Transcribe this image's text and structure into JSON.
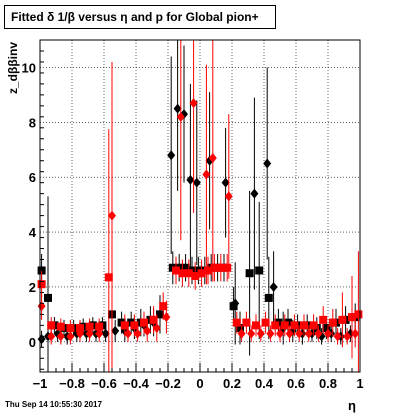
{
  "title": "Fitted δ 1/β versus η and p for Global pion+",
  "footer": "Thu Sep 14 10:55:30 2017",
  "chart_data": {
    "type": "scatter",
    "title": "Fitted δ 1/β versus η and p for Global pion+",
    "xlabel": "η",
    "ylabel": "z_dββinv",
    "xlim": [
      -1,
      1
    ],
    "ylim": [
      -1.1,
      11
    ],
    "x_ticks": [
      -1,
      -0.8,
      -0.6,
      -0.4,
      -0.2,
      0,
      0.2,
      0.4,
      0.6,
      0.8,
      1
    ],
    "x_tick_labels": [
      "−1",
      "−0.8",
      "−0.6",
      "−0.4",
      "−0.2",
      "0",
      "0.2",
      "0.4",
      "0.6",
      "0.8",
      "1"
    ],
    "y_ticks": [
      0,
      2,
      4,
      6,
      8,
      10
    ],
    "y_tick_labels": [
      "0",
      "2",
      "4",
      "6",
      "8",
      "10"
    ],
    "grid": true,
    "legend": "none",
    "colors": {
      "black": "#000000",
      "red": "#ff0000"
    },
    "series": [
      {
        "color": "black",
        "marker": "square",
        "points": [
          {
            "x": -0.99,
            "y": 2.6,
            "err": 0.6
          },
          {
            "x": -0.95,
            "y": 1.6,
            "err": 3.7
          },
          {
            "x": -0.91,
            "y": 0.6,
            "err": 0.3
          },
          {
            "x": -0.85,
            "y": 0.5,
            "err": 0.3
          },
          {
            "x": -0.79,
            "y": 0.5,
            "err": 0.3
          },
          {
            "x": -0.73,
            "y": 0.55,
            "err": 0.3
          },
          {
            "x": -0.67,
            "y": 0.6,
            "err": 0.3
          },
          {
            "x": -0.61,
            "y": 0.6,
            "err": 0.3
          },
          {
            "x": -0.55,
            "y": 1.0,
            "err": 0.6
          },
          {
            "x": -0.49,
            "y": 0.7,
            "err": 0.4
          },
          {
            "x": -0.43,
            "y": 0.7,
            "err": 0.4
          },
          {
            "x": -0.37,
            "y": 0.7,
            "err": 0.5
          },
          {
            "x": -0.31,
            "y": 0.8,
            "err": 0.5
          },
          {
            "x": -0.25,
            "y": 1.0,
            "err": 0.7
          },
          {
            "x": -0.17,
            "y": 2.7,
            "err": 0.6
          },
          {
            "x": -0.13,
            "y": 2.7,
            "err": 0.5
          },
          {
            "x": -0.09,
            "y": 2.7,
            "err": 0.5
          },
          {
            "x": -0.05,
            "y": 2.6,
            "err": 0.5
          },
          {
            "x": -0.01,
            "y": 2.6,
            "err": 0.5
          },
          {
            "x": 0.03,
            "y": 2.6,
            "err": 0.5
          },
          {
            "x": 0.07,
            "y": 2.7,
            "err": 0.5
          },
          {
            "x": 0.11,
            "y": 2.7,
            "err": 0.5
          },
          {
            "x": 0.15,
            "y": 2.7,
            "err": 0.5
          },
          {
            "x": 0.21,
            "y": 1.3,
            "err": 0.7
          },
          {
            "x": 0.25,
            "y": 0.5,
            "err": 0.6
          },
          {
            "x": 0.31,
            "y": 2.5,
            "err": 3.0
          },
          {
            "x": 0.37,
            "y": 2.6,
            "err": 2.5
          },
          {
            "x": 0.43,
            "y": 1.6,
            "err": 1.5
          },
          {
            "x": 0.49,
            "y": 0.7,
            "err": 0.5
          },
          {
            "x": 0.55,
            "y": 0.7,
            "err": 0.5
          },
          {
            "x": 0.61,
            "y": 0.6,
            "err": 0.4
          },
          {
            "x": 0.67,
            "y": 0.6,
            "err": 0.4
          },
          {
            "x": 0.73,
            "y": 0.5,
            "err": 0.4
          },
          {
            "x": 0.79,
            "y": 0.5,
            "err": 0.4
          },
          {
            "x": 0.85,
            "y": 0.7,
            "err": 0.5
          },
          {
            "x": 0.91,
            "y": 0.8,
            "err": 0.5
          },
          {
            "x": 0.97,
            "y": 0.9,
            "err": 0.5
          }
        ]
      },
      {
        "color": "black",
        "marker": "diamond",
        "points": [
          {
            "x": -0.99,
            "y": 0.1,
            "err": 0.3
          },
          {
            "x": -0.95,
            "y": 0.2,
            "err": 0.3
          },
          {
            "x": -0.89,
            "y": 0.3,
            "err": 0.3
          },
          {
            "x": -0.83,
            "y": 0.2,
            "err": 0.3
          },
          {
            "x": -0.77,
            "y": 0.3,
            "err": 0.3
          },
          {
            "x": -0.71,
            "y": 0.3,
            "err": 0.3
          },
          {
            "x": -0.65,
            "y": 0.3,
            "err": 0.3
          },
          {
            "x": -0.59,
            "y": 0.3,
            "err": 0.3
          },
          {
            "x": -0.53,
            "y": 0.4,
            "err": 0.4
          },
          {
            "x": -0.47,
            "y": 0.4,
            "err": 0.4
          },
          {
            "x": -0.41,
            "y": 0.5,
            "err": 0.4
          },
          {
            "x": -0.35,
            "y": 0.6,
            "err": 0.4
          },
          {
            "x": -0.29,
            "y": 0.7,
            "err": 0.5
          },
          {
            "x": -0.18,
            "y": 6.8,
            "err": 3.6
          },
          {
            "x": -0.14,
            "y": 8.5,
            "err": 3.0
          },
          {
            "x": -0.1,
            "y": 8.3,
            "err": 2.5
          },
          {
            "x": -0.06,
            "y": 5.9,
            "err": 3.5
          },
          {
            "x": -0.02,
            "y": 5.8,
            "err": 3.0
          },
          {
            "x": 0.06,
            "y": 6.6,
            "err": 2.5
          },
          {
            "x": 0.16,
            "y": 5.8,
            "err": 2.0
          },
          {
            "x": 0.22,
            "y": 1.4,
            "err": 1.5
          },
          {
            "x": 0.34,
            "y": 5.4,
            "err": 3.5
          },
          {
            "x": 0.42,
            "y": 6.5,
            "err": 3.5
          },
          {
            "x": 0.46,
            "y": 2.0,
            "err": 1.3
          },
          {
            "x": 0.52,
            "y": 0.5,
            "err": 0.6
          },
          {
            "x": 0.58,
            "y": 0.4,
            "err": 0.4
          },
          {
            "x": 0.64,
            "y": 0.3,
            "err": 0.4
          },
          {
            "x": 0.7,
            "y": 0.3,
            "err": 0.3
          },
          {
            "x": 0.76,
            "y": 0.2,
            "err": 0.3
          },
          {
            "x": 0.82,
            "y": 0.3,
            "err": 0.3
          },
          {
            "x": 0.88,
            "y": 0.2,
            "err": 0.3
          },
          {
            "x": 0.94,
            "y": 0.3,
            "err": 0.3
          }
        ]
      },
      {
        "color": "red",
        "marker": "square",
        "points": [
          {
            "x": -0.99,
            "y": 2.1,
            "err": 0.5
          },
          {
            "x": -0.93,
            "y": 0.6,
            "err": 0.3
          },
          {
            "x": -0.87,
            "y": 0.55,
            "err": 0.3
          },
          {
            "x": -0.81,
            "y": 0.5,
            "err": 0.3
          },
          {
            "x": -0.75,
            "y": 0.5,
            "err": 0.3
          },
          {
            "x": -0.69,
            "y": 0.55,
            "err": 0.3
          },
          {
            "x": -0.63,
            "y": 0.55,
            "err": 0.3
          },
          {
            "x": -0.57,
            "y": 2.35,
            "err": 5.4
          },
          {
            "x": -0.47,
            "y": 0.6,
            "err": 0.4
          },
          {
            "x": -0.41,
            "y": 0.6,
            "err": 0.4
          },
          {
            "x": -0.35,
            "y": 0.7,
            "err": 0.4
          },
          {
            "x": -0.29,
            "y": 0.8,
            "err": 0.5
          },
          {
            "x": -0.23,
            "y": 1.3,
            "err": 0.5
          },
          {
            "x": -0.15,
            "y": 2.6,
            "err": 0.5
          },
          {
            "x": -0.11,
            "y": 2.5,
            "err": 0.5
          },
          {
            "x": -0.07,
            "y": 2.5,
            "err": 0.5
          },
          {
            "x": -0.03,
            "y": 2.4,
            "err": 0.5
          },
          {
            "x": 0.01,
            "y": 2.5,
            "err": 0.5
          },
          {
            "x": 0.05,
            "y": 2.6,
            "err": 0.5
          },
          {
            "x": 0.09,
            "y": 2.7,
            "err": 0.5
          },
          {
            "x": 0.13,
            "y": 2.7,
            "err": 0.5
          },
          {
            "x": 0.17,
            "y": 2.7,
            "err": 0.5
          },
          {
            "x": 0.23,
            "y": 0.7,
            "err": 0.4
          },
          {
            "x": 0.29,
            "y": 0.7,
            "err": 0.4
          },
          {
            "x": 0.35,
            "y": 0.6,
            "err": 0.4
          },
          {
            "x": 0.41,
            "y": 0.7,
            "err": 0.4
          },
          {
            "x": 0.47,
            "y": 0.6,
            "err": 0.4
          },
          {
            "x": 0.53,
            "y": 0.6,
            "err": 0.4
          },
          {
            "x": 0.59,
            "y": 0.6,
            "err": 0.4
          },
          {
            "x": 0.65,
            "y": 0.6,
            "err": 0.4
          },
          {
            "x": 0.71,
            "y": 0.6,
            "err": 0.4
          },
          {
            "x": 0.77,
            "y": 0.8,
            "err": 0.5
          },
          {
            "x": 0.83,
            "y": 0.7,
            "err": 0.5
          },
          {
            "x": 0.89,
            "y": 0.8,
            "err": 1.0
          },
          {
            "x": 0.95,
            "y": 0.9,
            "err": 1.5
          },
          {
            "x": 0.99,
            "y": 1.0,
            "err": 2.3
          }
        ]
      },
      {
        "color": "red",
        "marker": "diamond",
        "points": [
          {
            "x": -0.99,
            "y": 1.3,
            "err": 0.5
          },
          {
            "x": -0.93,
            "y": 0.2,
            "err": 0.3
          },
          {
            "x": -0.87,
            "y": 0.2,
            "err": 0.3
          },
          {
            "x": -0.81,
            "y": 0.2,
            "err": 0.3
          },
          {
            "x": -0.75,
            "y": 0.3,
            "err": 0.3
          },
          {
            "x": -0.69,
            "y": 0.3,
            "err": 0.3
          },
          {
            "x": -0.63,
            "y": 0.3,
            "err": 0.3
          },
          {
            "x": -0.55,
            "y": 4.6,
            "err": 5.6
          },
          {
            "x": -0.45,
            "y": 0.3,
            "err": 0.3
          },
          {
            "x": -0.39,
            "y": 0.3,
            "err": 0.3
          },
          {
            "x": -0.33,
            "y": 0.4,
            "err": 0.4
          },
          {
            "x": -0.27,
            "y": 0.5,
            "err": 0.5
          },
          {
            "x": -0.21,
            "y": 0.9,
            "err": 0.6
          },
          {
            "x": -0.12,
            "y": 8.2,
            "err": 4.5
          },
          {
            "x": -0.04,
            "y": 8.7,
            "err": 4.0
          },
          {
            "x": 0.04,
            "y": 6.1,
            "err": 4.0
          },
          {
            "x": 0.08,
            "y": 6.7,
            "err": 4.5
          },
          {
            "x": 0.18,
            "y": 5.3,
            "err": 3.0
          },
          {
            "x": 0.26,
            "y": 0.3,
            "err": 0.3
          },
          {
            "x": 0.32,
            "y": 0.3,
            "err": 0.3
          },
          {
            "x": 0.38,
            "y": 0.3,
            "err": 0.3
          },
          {
            "x": 0.44,
            "y": 0.3,
            "err": 0.3
          },
          {
            "x": 0.5,
            "y": 0.3,
            "err": 0.3
          },
          {
            "x": 0.56,
            "y": 0.3,
            "err": 0.3
          },
          {
            "x": 0.62,
            "y": 0.3,
            "err": 0.3
          },
          {
            "x": 0.68,
            "y": 0.3,
            "err": 0.3
          },
          {
            "x": 0.74,
            "y": 0.3,
            "err": 0.3
          },
          {
            "x": 0.8,
            "y": 0.3,
            "err": 0.3
          },
          {
            "x": 0.86,
            "y": 0.2,
            "err": 0.3
          },
          {
            "x": 0.92,
            "y": 0.2,
            "err": 0.3
          },
          {
            "x": 0.97,
            "y": 0.3,
            "err": 0.5
          }
        ]
      }
    ]
  }
}
